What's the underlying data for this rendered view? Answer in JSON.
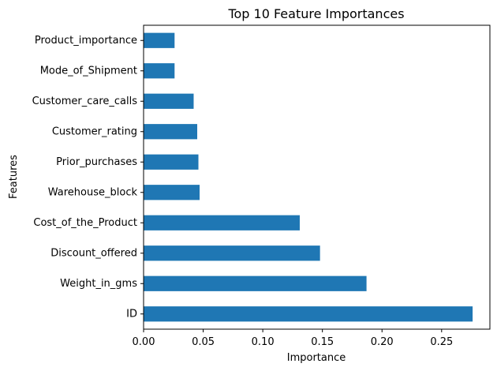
{
  "chart_data": {
    "type": "bar",
    "orientation": "horizontal",
    "title": "Top 10 Feature Importances",
    "xlabel": "Importance",
    "ylabel": "Features",
    "categories": [
      "ID",
      "Weight_in_gms",
      "Discount_offered",
      "Cost_of_the_Product",
      "Warehouse_block",
      "Prior_purchases",
      "Customer_rating",
      "Customer_care_calls",
      "Mode_of_Shipment",
      "Product_importance"
    ],
    "values": [
      0.276,
      0.187,
      0.148,
      0.131,
      0.047,
      0.046,
      0.045,
      0.042,
      0.026,
      0.026
    ],
    "xlim": [
      0,
      0.2905
    ],
    "xticks": [
      0.0,
      0.05,
      0.1,
      0.15,
      0.2,
      0.25
    ],
    "xtick_labels": [
      "0.00",
      "0.05",
      "0.10",
      "0.15",
      "0.20",
      "0.25"
    ],
    "grid": false,
    "bar_color": "#1f77b4"
  }
}
